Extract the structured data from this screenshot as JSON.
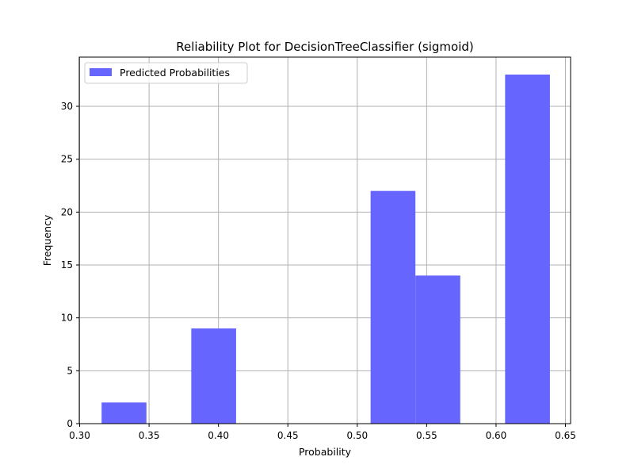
{
  "chart_data": {
    "type": "bar",
    "title": "Reliability Plot for DecisionTreeClassifier (sigmoid)",
    "xlabel": "Probability",
    "ylabel": "Frequency",
    "xlim": [
      0.2997,
      0.6537
    ],
    "ylim": [
      0,
      34.65
    ],
    "xticks": [
      0.3,
      0.35,
      0.4,
      0.45,
      0.5,
      0.55,
      0.6,
      0.65
    ],
    "xtick_labels": [
      "0.30",
      "0.35",
      "0.40",
      "0.45",
      "0.50",
      "0.55",
      "0.60",
      "0.65"
    ],
    "yticks": [
      0,
      5,
      10,
      15,
      20,
      25,
      30
    ],
    "ytick_labels": [
      "0",
      "5",
      "10",
      "15",
      "20",
      "25",
      "30"
    ],
    "grid": true,
    "legend_position": "top-left",
    "series": [
      {
        "name": "Predicted Probabilities",
        "color": "#6666ff",
        "bins": [
          {
            "x0": 0.3158,
            "x1": 0.3481,
            "value": 2
          },
          {
            "x0": 0.3804,
            "x1": 0.4127,
            "value": 9
          },
          {
            "x0": 0.5096,
            "x1": 0.5419,
            "value": 22
          },
          {
            "x0": 0.5419,
            "x1": 0.5742,
            "value": 14
          },
          {
            "x0": 0.6065,
            "x1": 0.6388,
            "value": 33
          }
        ]
      }
    ]
  }
}
